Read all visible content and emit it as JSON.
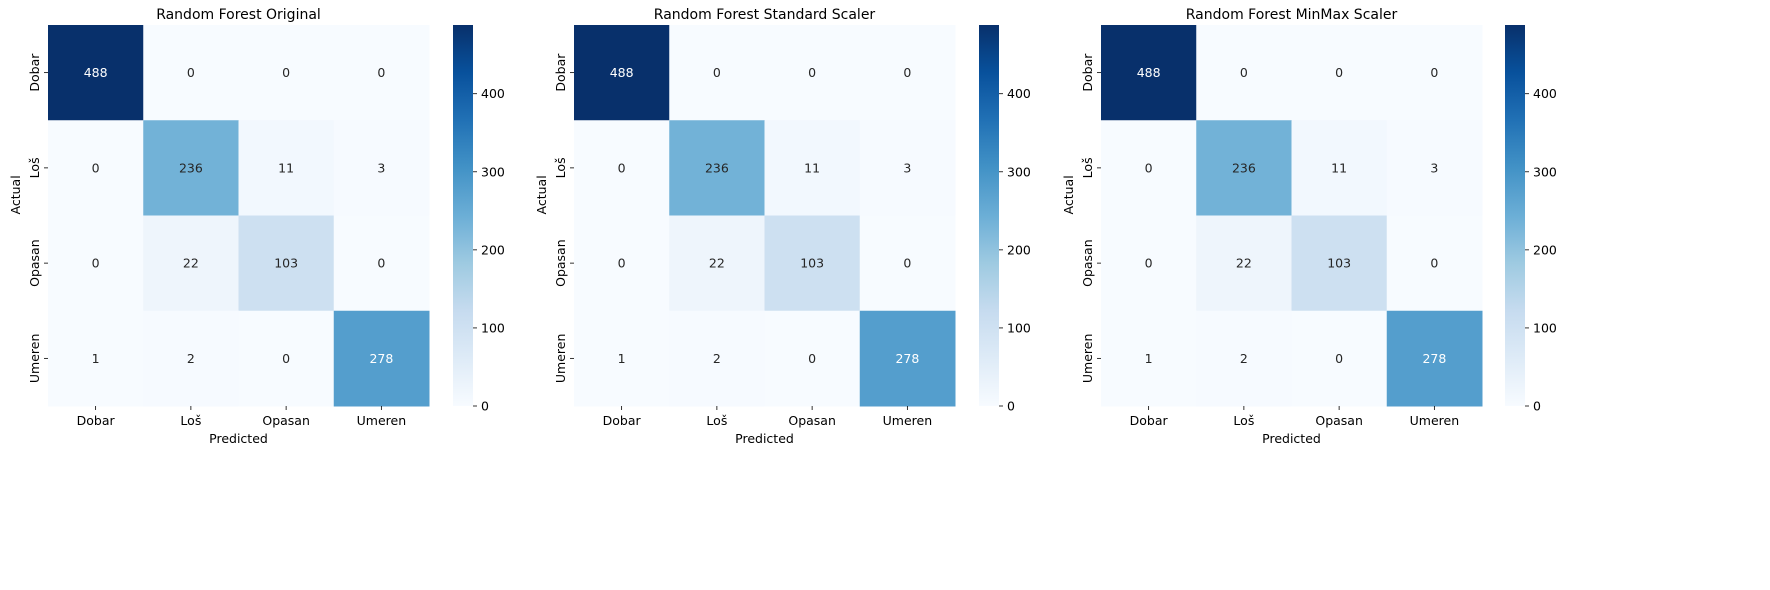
{
  "chart_data": [
    {
      "type": "heatmap",
      "title": "Random Forest Original",
      "xlabel": "Predicted",
      "ylabel": "Actual",
      "x_categories": [
        "Dobar",
        "Loš",
        "Opasan",
        "Umeren"
      ],
      "y_categories": [
        "Dobar",
        "Loš",
        "Opasan",
        "Umeren"
      ],
      "values": [
        [
          488,
          0,
          0,
          0
        ],
        [
          0,
          236,
          11,
          3
        ],
        [
          0,
          22,
          103,
          0
        ],
        [
          1,
          2,
          0,
          278
        ]
      ],
      "colormap": "Blues",
      "colorbar_ticks": [
        0,
        100,
        200,
        300,
        400
      ],
      "vmin": 0,
      "vmax": 488
    },
    {
      "type": "heatmap",
      "title": "Random Forest Standard Scaler",
      "xlabel": "Predicted",
      "ylabel": "Actual",
      "x_categories": [
        "Dobar",
        "Loš",
        "Opasan",
        "Umeren"
      ],
      "y_categories": [
        "Dobar",
        "Loš",
        "Opasan",
        "Umeren"
      ],
      "values": [
        [
          488,
          0,
          0,
          0
        ],
        [
          0,
          236,
          11,
          3
        ],
        [
          0,
          22,
          103,
          0
        ],
        [
          1,
          2,
          0,
          278
        ]
      ],
      "colormap": "Blues",
      "colorbar_ticks": [
        0,
        100,
        200,
        300,
        400
      ],
      "vmin": 0,
      "vmax": 488
    },
    {
      "type": "heatmap",
      "title": "Random Forest MinMax Scaler",
      "xlabel": "Predicted",
      "ylabel": "Actual",
      "x_categories": [
        "Dobar",
        "Loš",
        "Opasan",
        "Umeren"
      ],
      "y_categories": [
        "Dobar",
        "Loš",
        "Opasan",
        "Umeren"
      ],
      "values": [
        [
          488,
          0,
          0,
          0
        ],
        [
          0,
          236,
          11,
          3
        ],
        [
          0,
          22,
          103,
          0
        ],
        [
          1,
          2,
          0,
          278
        ]
      ],
      "colormap": "Blues",
      "colorbar_ticks": [
        0,
        100,
        200,
        300,
        400
      ],
      "vmin": 0,
      "vmax": 488
    }
  ]
}
